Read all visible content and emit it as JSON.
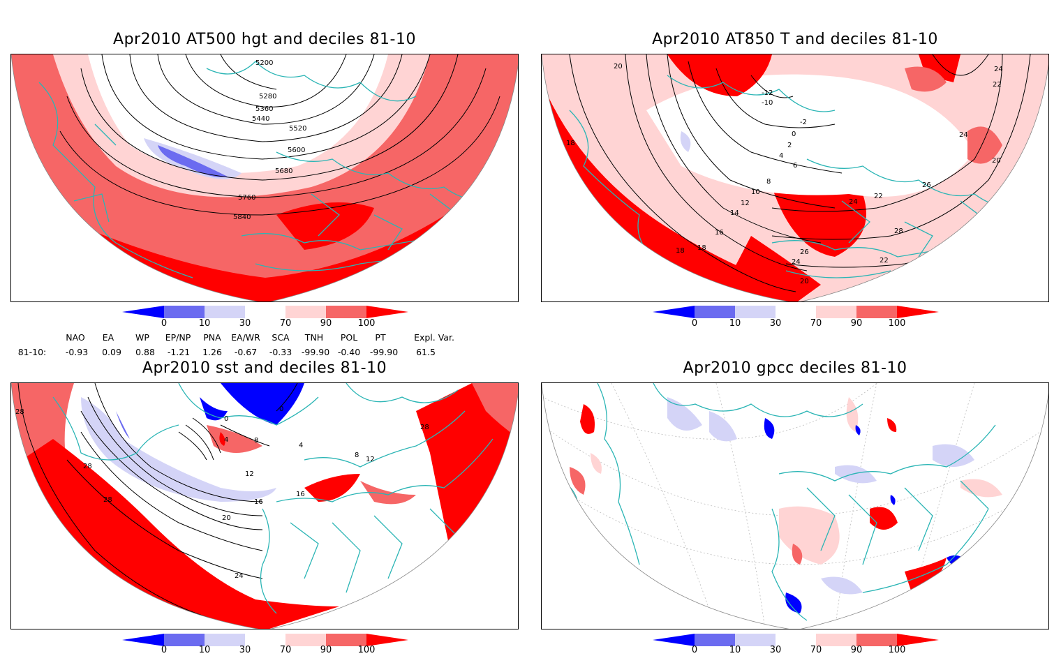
{
  "panels": [
    {
      "id": "p1",
      "title": "Apr2010 AT500 hgt and deciles 81-10",
      "contour_labels": [
        "5200",
        "5280",
        "5360",
        "5440",
        "5520",
        "5600",
        "5680",
        "5760",
        "5840"
      ]
    },
    {
      "id": "p2",
      "title": "Apr2010 AT850 T and deciles 81-10",
      "contour_labels": [
        "20",
        "18",
        "24",
        "22",
        "24",
        "20",
        "0",
        "-2",
        "2",
        "4",
        "6",
        "8",
        "10",
        "12",
        "14",
        "16",
        "18",
        "22",
        "24",
        "26",
        "28",
        "26",
        "24",
        "22",
        "18",
        "20",
        "-10",
        "-12"
      ]
    },
    {
      "id": "p3",
      "title": "Apr2010 sst and deciles 81-10",
      "contour_labels": [
        "28",
        "28",
        "28",
        "0",
        "0",
        "4",
        "8",
        "12",
        "16",
        "16",
        "20",
        "24",
        "28",
        "4",
        "8",
        "12"
      ]
    },
    {
      "id": "p4",
      "title": "Apr2010 gpcc deciles 81-10",
      "contour_labels": []
    }
  ],
  "colorbar": {
    "labels": [
      "0",
      "10",
      "30",
      "70",
      "90",
      "100"
    ],
    "colors": [
      "#0000ff",
      "#6b6bf0",
      "#d4d4f7",
      "#ffffff",
      "#ffd4d4",
      "#f66666",
      "#ff0000"
    ]
  },
  "indices": {
    "names": [
      "NAO",
      "EA",
      "WP",
      "EP/NP",
      "PNA",
      "EA/WR",
      "SCA",
      "TNH",
      "POL",
      "PT",
      "Expl. Var."
    ],
    "row_label": "81-10:",
    "values": [
      "-0.93",
      "0.09",
      "0.88",
      "-1.21",
      "1.26",
      "-0.67",
      "-0.33",
      "-99.90",
      "-0.40",
      "-99.90",
      "61.5"
    ]
  },
  "colors": {
    "coast": "#2bb5b5",
    "strong_red": "#ff0000",
    "mid_red": "#f66666",
    "light_red": "#ffd4d4",
    "light_blue": "#d4d4f7",
    "mid_blue": "#6b6bf0",
    "strong_blue": "#0000ff"
  }
}
